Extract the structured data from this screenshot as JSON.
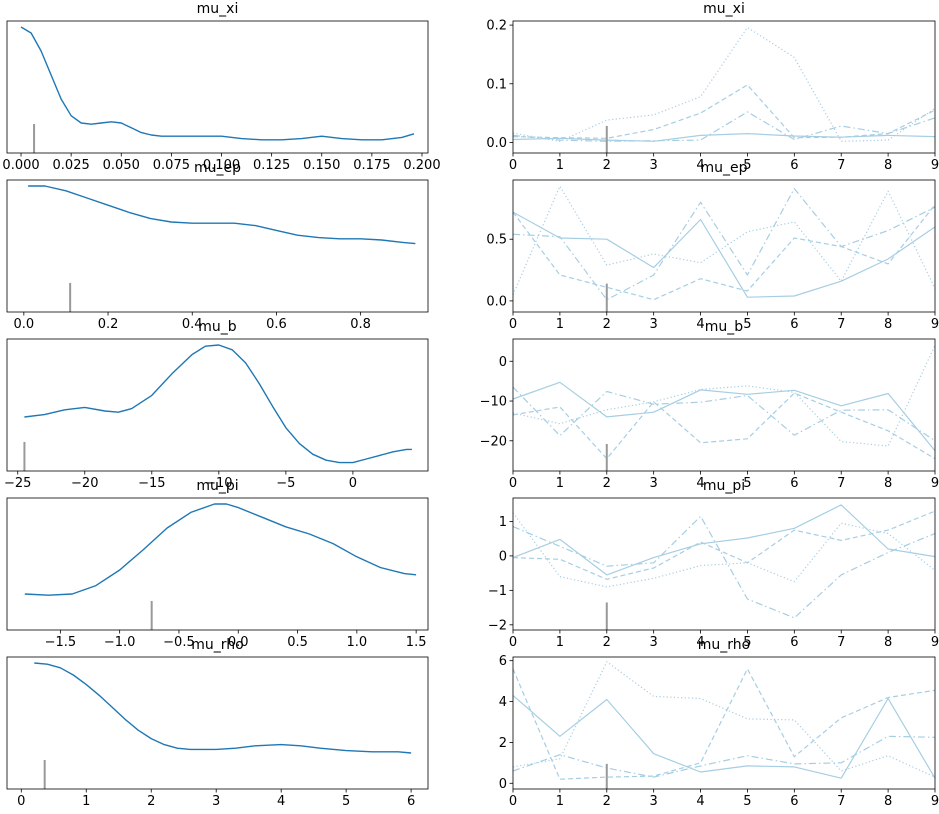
{
  "chart_data": [
    {
      "type": "line",
      "title": "mu_xi",
      "xticks": [
        0.0,
        0.025,
        0.05,
        0.075,
        0.1,
        0.125,
        0.15,
        0.175,
        0.2
      ],
      "xtick_labels": [
        "0.000",
        "0.025",
        "0.050",
        "0.075",
        "0.100",
        "0.125",
        "0.150",
        "0.175",
        "0.200"
      ],
      "xlim": [
        -0.007,
        0.203
      ],
      "ylim": [
        -0.05,
        1.05
      ],
      "series": [
        {
          "x": [
            0.0,
            0.005,
            0.01,
            0.015,
            0.02,
            0.025,
            0.03,
            0.035,
            0.04,
            0.045,
            0.05,
            0.055,
            0.06,
            0.065,
            0.07,
            0.08,
            0.09,
            0.1,
            0.11,
            0.12,
            0.13,
            0.14,
            0.15,
            0.16,
            0.17,
            0.18,
            0.19,
            0.196
          ],
          "y": [
            1.0,
            0.95,
            0.8,
            0.6,
            0.4,
            0.26,
            0.2,
            0.19,
            0.2,
            0.21,
            0.2,
            0.16,
            0.12,
            0.1,
            0.09,
            0.09,
            0.09,
            0.09,
            0.07,
            0.06,
            0.06,
            0.07,
            0.09,
            0.07,
            0.06,
            0.06,
            0.08,
            0.11
          ]
        }
      ],
      "vline": {
        "x": 0.0065,
        "height": 0.22
      }
    },
    {
      "type": "line",
      "title": "mu_xi",
      "xticks": [
        0,
        1,
        2,
        3,
        4,
        5,
        6,
        7,
        8,
        9
      ],
      "xtick_labels": [
        "0",
        "1",
        "2",
        "3",
        "4",
        "5",
        "6",
        "7",
        "8",
        "9"
      ],
      "yticks": [
        0.0,
        0.1,
        0.2
      ],
      "ytick_labels": [
        "0.0",
        "0.1",
        "0.2"
      ],
      "xlim": [
        0,
        9
      ],
      "ylim": [
        -0.018,
        0.207
      ],
      "series": [
        {
          "style": "solid",
          "values": [
            0.005,
            0.007,
            0.004,
            0.002,
            0.012,
            0.015,
            0.011,
            0.009,
            0.012,
            0.01
          ]
        },
        {
          "style": "dashed",
          "values": [
            0.01,
            0.008,
            0.007,
            0.022,
            0.05,
            0.098,
            0.008,
            0.009,
            0.015,
            0.055
          ]
        },
        {
          "style": "dashdot",
          "values": [
            0.012,
            0.004,
            0.002,
            0.003,
            0.004,
            0.052,
            0.005,
            0.028,
            0.015,
            0.042
          ]
        },
        {
          "style": "dotted",
          "values": [
            0.016,
            0.002,
            0.038,
            0.047,
            0.078,
            0.196,
            0.145,
            0.002,
            0.004,
            0.058
          ]
        }
      ],
      "vline": {
        "x": 2,
        "ytop": 0.028
      }
    },
    {
      "type": "line",
      "title": "mu_ep",
      "xticks": [
        0.0,
        0.2,
        0.4,
        0.6,
        0.8
      ],
      "xtick_labels": [
        "0.0",
        "0.2",
        "0.4",
        "0.6",
        "0.8"
      ],
      "xlim": [
        -0.04,
        0.96
      ],
      "ylim": [
        -0.05,
        1.05
      ],
      "series": [
        {
          "x": [
            0.01,
            0.05,
            0.1,
            0.15,
            0.2,
            0.25,
            0.3,
            0.35,
            0.4,
            0.45,
            0.5,
            0.55,
            0.6,
            0.65,
            0.7,
            0.75,
            0.8,
            0.85,
            0.9,
            0.93
          ],
          "y": [
            1.0,
            1.0,
            0.96,
            0.9,
            0.84,
            0.78,
            0.73,
            0.7,
            0.69,
            0.69,
            0.69,
            0.67,
            0.63,
            0.59,
            0.57,
            0.56,
            0.56,
            0.55,
            0.53,
            0.52
          ]
        }
      ],
      "vline": {
        "x": 0.11,
        "height": 0.22
      }
    },
    {
      "type": "line",
      "title": "mu_ep",
      "xticks": [
        0,
        1,
        2,
        3,
        4,
        5,
        6,
        7,
        8,
        9
      ],
      "xtick_labels": [
        "0",
        "1",
        "2",
        "3",
        "4",
        "5",
        "6",
        "7",
        "8",
        "9"
      ],
      "yticks": [
        0.0,
        0.5
      ],
      "ytick_labels": [
        "0.0",
        "0.5"
      ],
      "xlim": [
        0,
        9
      ],
      "ylim": [
        -0.09,
        0.98
      ],
      "series": [
        {
          "style": "solid",
          "values": [
            0.72,
            0.51,
            0.5,
            0.27,
            0.66,
            0.03,
            0.04,
            0.16,
            0.34,
            0.6
          ]
        },
        {
          "style": "dashed",
          "values": [
            0.72,
            0.21,
            0.11,
            0.01,
            0.18,
            0.08,
            0.51,
            0.44,
            0.3,
            0.78
          ]
        },
        {
          "style": "dashdot",
          "values": [
            0.54,
            0.52,
            0.01,
            0.21,
            0.8,
            0.21,
            0.91,
            0.44,
            0.57,
            0.76
          ]
        },
        {
          "style": "dotted",
          "values": [
            0.05,
            0.93,
            0.29,
            0.38,
            0.31,
            0.56,
            0.64,
            0.16,
            0.89,
            0.1
          ]
        }
      ],
      "vline": {
        "x": 2,
        "ytop": 0.14
      }
    },
    {
      "type": "line",
      "title": "mu_b",
      "xticks": [
        -25,
        -20,
        -15,
        -10,
        -5,
        0
      ],
      "xtick_labels": [
        "−25",
        "−20",
        "−15",
        "−10",
        "−5",
        "0"
      ],
      "xlim": [
        -25.8,
        5.6
      ],
      "ylim": [
        -0.05,
        1.05
      ],
      "series": [
        {
          "x": [
            -24.5,
            -23,
            -21.5,
            -20,
            -18.5,
            -17.5,
            -16.5,
            -15,
            -13.5,
            -12,
            -11,
            -10,
            -9,
            -8,
            -7,
            -6,
            -5,
            -4,
            -3,
            -2,
            -1,
            0,
            1,
            2,
            3,
            4,
            4.4
          ],
          "y": [
            0.4,
            0.42,
            0.46,
            0.48,
            0.45,
            0.44,
            0.47,
            0.58,
            0.76,
            0.92,
            0.99,
            1.0,
            0.96,
            0.85,
            0.68,
            0.49,
            0.31,
            0.18,
            0.09,
            0.04,
            0.02,
            0.02,
            0.05,
            0.08,
            0.11,
            0.13,
            0.13
          ]
        }
      ],
      "vline": {
        "x": -24.5,
        "height": 0.22
      }
    },
    {
      "type": "line",
      "title": "mu_b",
      "xticks": [
        0,
        1,
        2,
        3,
        4,
        5,
        6,
        7,
        8,
        9
      ],
      "xtick_labels": [
        "0",
        "1",
        "2",
        "3",
        "4",
        "5",
        "6",
        "7",
        "8",
        "9"
      ],
      "yticks": [
        -20,
        -10,
        0
      ],
      "ytick_labels": [
        "−20",
        "−10",
        "0"
      ],
      "xlim": [
        0,
        9
      ],
      "ylim": [
        -27.6,
        5.6
      ],
      "series": [
        {
          "style": "solid",
          "values": [
            -9.5,
            -5.3,
            -14.0,
            -12.8,
            -7.2,
            -8.3,
            -7.3,
            -11.2,
            -8.1,
            -22.5
          ]
        },
        {
          "style": "dashed",
          "values": [
            -13.5,
            -11.5,
            -24.5,
            -10.2,
            -20.5,
            -19.5,
            -8.0,
            -12.8,
            -17.5,
            -24.5
          ]
        },
        {
          "style": "dashdot",
          "values": [
            -6.5,
            -18.7,
            -7.6,
            -10.8,
            -10.3,
            -8.6,
            -18.6,
            -12.3,
            -12.2,
            -20.0
          ]
        },
        {
          "style": "dotted",
          "values": [
            -13.0,
            -15.7,
            -12.2,
            -10.2,
            -7.1,
            -6.2,
            -7.8,
            -20.2,
            -21.3,
            4.0
          ]
        }
      ],
      "vline": {
        "x": 2,
        "ytop": -20.8
      }
    },
    {
      "type": "line",
      "title": "mu_pi",
      "xticks": [
        -1.5,
        -1.0,
        -0.5,
        0.0,
        0.5,
        1.0,
        1.5
      ],
      "xtick_labels": [
        "−1.5",
        "−1.0",
        "−0.5",
        "0.0",
        "0.5",
        "1.0",
        "1.5"
      ],
      "xlim": [
        -1.95,
        1.6
      ],
      "ylim": [
        -0.05,
        1.05
      ],
      "series": [
        {
          "x": [
            -1.8,
            -1.6,
            -1.4,
            -1.2,
            -1.0,
            -0.8,
            -0.6,
            -0.4,
            -0.2,
            -0.1,
            0.0,
            0.2,
            0.4,
            0.6,
            0.8,
            1.0,
            1.2,
            1.4,
            1.5
          ],
          "y": [
            0.25,
            0.24,
            0.25,
            0.32,
            0.45,
            0.62,
            0.8,
            0.93,
            1.0,
            1.0,
            0.97,
            0.89,
            0.81,
            0.75,
            0.67,
            0.56,
            0.47,
            0.42,
            0.41
          ]
        }
      ],
      "vline": {
        "x": -0.73,
        "height": 0.22
      }
    },
    {
      "type": "line",
      "title": "mu_pi",
      "xticks": [
        0,
        1,
        2,
        3,
        4,
        5,
        6,
        7,
        8,
        9
      ],
      "xtick_labels": [
        "0",
        "1",
        "2",
        "3",
        "4",
        "5",
        "6",
        "7",
        "8",
        "9"
      ],
      "yticks": [
        -2,
        -1,
        0,
        1
      ],
      "ytick_labels": [
        "−2",
        "−1",
        "0",
        "1"
      ],
      "xlim": [
        0,
        9
      ],
      "ylim": [
        -2.15,
        1.68
      ],
      "series": [
        {
          "style": "solid",
          "values": [
            -0.05,
            0.48,
            -0.55,
            -0.05,
            0.35,
            0.52,
            0.8,
            1.48,
            0.2,
            -0.02
          ]
        },
        {
          "style": "dashed",
          "values": [
            -0.05,
            -0.1,
            -0.68,
            -0.35,
            0.4,
            -0.2,
            0.75,
            0.45,
            0.75,
            1.3
          ]
        },
        {
          "style": "dashdot",
          "values": [
            0.85,
            0.28,
            -0.3,
            -0.2,
            1.15,
            -1.25,
            -1.8,
            -0.55,
            0.1,
            0.65
          ]
        },
        {
          "style": "dotted",
          "values": [
            1.25,
            -0.6,
            -0.9,
            -0.65,
            -0.28,
            -0.2,
            -0.75,
            0.95,
            0.65,
            -0.42
          ]
        }
      ],
      "vline": {
        "x": 2,
        "ytop": -1.35
      }
    },
    {
      "type": "line",
      "title": "mu_rho",
      "xticks": [
        0,
        1,
        2,
        3,
        4,
        5,
        6
      ],
      "xtick_labels": [
        "0",
        "1",
        "2",
        "3",
        "4",
        "5",
        "6"
      ],
      "xlim": [
        -0.22,
        6.26
      ],
      "ylim": [
        -0.05,
        1.05
      ],
      "series": [
        {
          "x": [
            0.2,
            0.4,
            0.6,
            0.8,
            1.0,
            1.2,
            1.4,
            1.6,
            1.8,
            2.0,
            2.2,
            2.4,
            2.6,
            2.8,
            3.0,
            3.3,
            3.6,
            4.0,
            4.3,
            4.6,
            5.0,
            5.4,
            5.8,
            6.0
          ],
          "y": [
            1.0,
            0.99,
            0.96,
            0.9,
            0.82,
            0.73,
            0.63,
            0.53,
            0.44,
            0.37,
            0.32,
            0.29,
            0.28,
            0.28,
            0.28,
            0.29,
            0.31,
            0.32,
            0.31,
            0.29,
            0.27,
            0.26,
            0.26,
            0.25
          ]
        }
      ],
      "vline": {
        "x": 0.36,
        "height": 0.22
      }
    },
    {
      "type": "line",
      "title": "mu_rho",
      "xticks": [
        0,
        1,
        2,
        3,
        4,
        5,
        6,
        7,
        8,
        9
      ],
      "xtick_labels": [
        "0",
        "1",
        "2",
        "3",
        "4",
        "5",
        "6",
        "7",
        "8",
        "9"
      ],
      "yticks": [
        0,
        2,
        4,
        6
      ],
      "ytick_labels": [
        "0",
        "2",
        "4",
        "6"
      ],
      "xlim": [
        0,
        9
      ],
      "ylim": [
        -0.28,
        6.18
      ],
      "series": [
        {
          "style": "solid",
          "values": [
            4.3,
            2.3,
            4.1,
            1.45,
            0.55,
            0.85,
            0.8,
            0.25,
            4.15,
            0.25
          ]
        },
        {
          "style": "dashed",
          "values": [
            5.6,
            0.2,
            0.3,
            0.35,
            1.0,
            5.6,
            1.3,
            3.2,
            4.2,
            4.55
          ]
        },
        {
          "style": "dashdot",
          "values": [
            0.6,
            1.4,
            0.75,
            0.3,
            0.85,
            1.35,
            0.95,
            1.0,
            2.3,
            2.25
          ]
        },
        {
          "style": "dotted",
          "values": [
            0.8,
            1.2,
            5.95,
            4.25,
            4.15,
            3.15,
            3.1,
            0.6,
            1.35,
            0.3
          ]
        }
      ],
      "vline": {
        "x": 2,
        "ytop": 0.95
      }
    }
  ]
}
